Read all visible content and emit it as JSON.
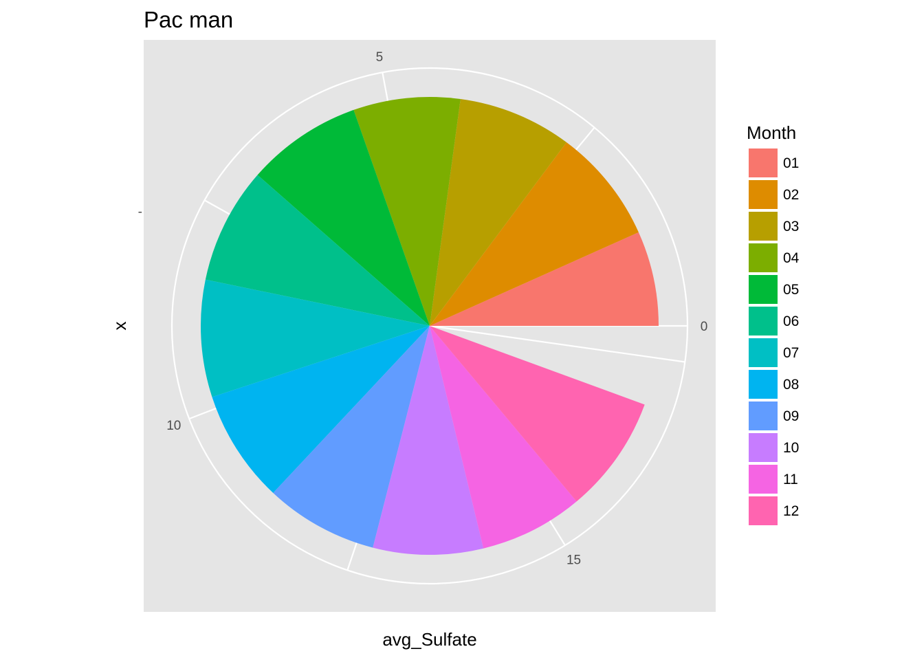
{
  "chart_data": {
    "type": "pie",
    "coord": "polar",
    "title": "Pac man",
    "xlabel": "avg_Sulfate",
    "ylabel": "x",
    "y_tick_labels": [
      "-"
    ],
    "theta_range": [
      0,
      17.9
    ],
    "theta_ticks": [
      0,
      5,
      10,
      15
    ],
    "theta_tick_labels": [
      "0",
      "5",
      "10",
      "15"
    ],
    "panel_background": "#e5e5e5",
    "grid": true,
    "legend": {
      "title": "Month",
      "position": "right"
    },
    "categories": [
      "01",
      "02",
      "03",
      "04",
      "05",
      "06",
      "07",
      "08",
      "09",
      "10",
      "11",
      "12"
    ],
    "values": [
      1.2,
      1.45,
      1.44,
      1.35,
      1.46,
      1.47,
      1.48,
      1.43,
      1.43,
      1.39,
      1.31,
      1.49
    ],
    "colors": [
      "#F8766D",
      "#DE8C00",
      "#B79F00",
      "#7CAE00",
      "#00BA38",
      "#00C08B",
      "#00BFC4",
      "#00B4F0",
      "#619CFF",
      "#C77CFF",
      "#F564E3",
      "#FF64B0"
    ]
  }
}
